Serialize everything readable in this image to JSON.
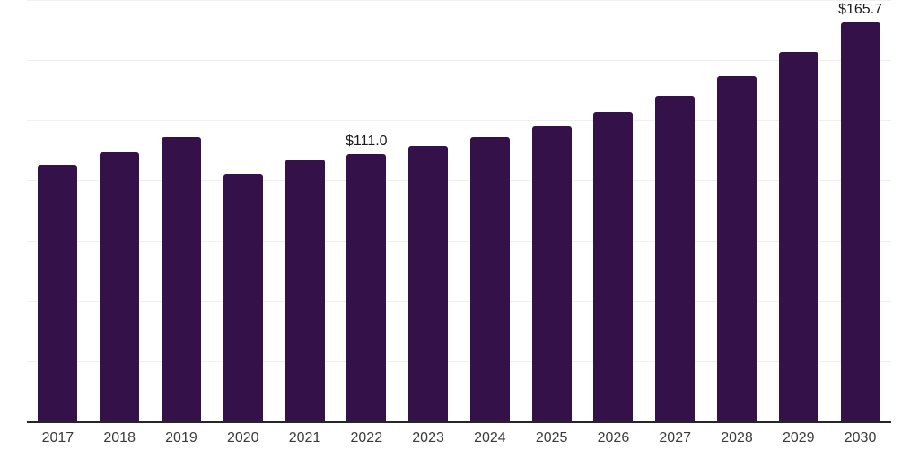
{
  "chart_data": {
    "type": "bar",
    "title": "",
    "xlabel": "",
    "ylabel": "",
    "categories": [
      "2017",
      "2018",
      "2019",
      "2020",
      "2021",
      "2022",
      "2023",
      "2024",
      "2025",
      "2026",
      "2027",
      "2028",
      "2029",
      "2030"
    ],
    "values": [
      106.5,
      111.6,
      118.0,
      102.8,
      108.9,
      111.0,
      114.2,
      118.0,
      122.4,
      128.4,
      135.0,
      143.4,
      153.3,
      165.7
    ],
    "bar_labels": {
      "2022": "$111.0",
      "2030": "$165.7"
    },
    "ylim": [
      0,
      175
    ],
    "grid_interval": 25,
    "grid": "horizontal",
    "legend": "none",
    "colors": {
      "bar": "#341249",
      "gridline": "#f0f0f0",
      "axis": "#262626",
      "tick_label": "#3a3a3a",
      "value_label": "#1a1a1a",
      "background": "#ffffff"
    }
  }
}
